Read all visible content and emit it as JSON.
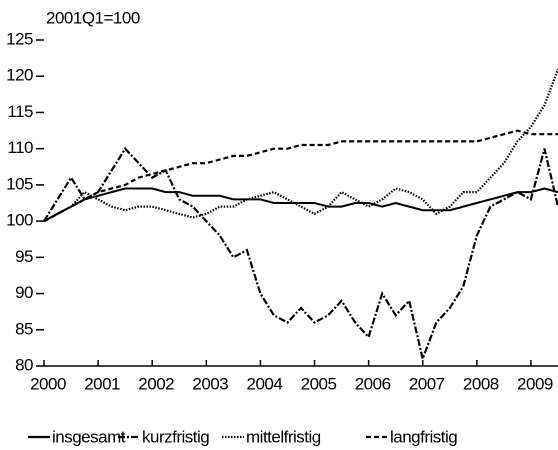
{
  "chart_data": {
    "type": "line",
    "subtitle": "2001Q1=100",
    "x": [
      2000,
      2000.25,
      2000.5,
      2000.75,
      2001,
      2001.25,
      2001.5,
      2001.75,
      2002,
      2002.25,
      2002.5,
      2002.75,
      2003,
      2003.25,
      2003.5,
      2003.75,
      2004,
      2004.25,
      2004.5,
      2004.75,
      2005,
      2005.25,
      2005.5,
      2005.75,
      2006,
      2006.25,
      2006.5,
      2006.75,
      2007,
      2007.25,
      2007.5,
      2007.75,
      2008,
      2008.25,
      2008.5,
      2008.75,
      2009,
      2009.25,
      2009.5
    ],
    "series": [
      {
        "name": "insgesamt",
        "color": "#000000",
        "style": "solid",
        "values": [
          100,
          101,
          102,
          103,
          103.5,
          104,
          104.5,
          104.5,
          104.5,
          104,
          104,
          103.5,
          103.5,
          103.5,
          103,
          103,
          103,
          102.5,
          102.5,
          102.5,
          102.5,
          102,
          102,
          102.5,
          102.5,
          102,
          102.5,
          102,
          101.5,
          101.5,
          101.5,
          102,
          102.5,
          103,
          103.5,
          104,
          104,
          104.5,
          104
        ]
      },
      {
        "name": "kurzfristig",
        "color": "#000000",
        "style": "dashdot",
        "values": [
          100,
          103,
          106,
          103,
          104,
          107,
          110,
          108,
          106,
          107,
          103,
          102,
          100,
          98,
          95,
          96,
          90,
          87,
          86,
          88,
          86,
          87,
          89,
          86,
          84,
          90,
          87,
          89,
          81,
          86,
          88,
          91,
          98,
          102,
          103,
          104,
          103,
          110,
          102
        ]
      },
      {
        "name": "mittelfristig",
        "color": "#000000",
        "style": "dotted",
        "values": [
          100,
          101,
          102,
          104,
          103,
          102,
          101.5,
          102,
          102,
          101.5,
          101,
          100.5,
          101,
          102,
          102,
          103,
          103.5,
          104,
          103,
          102,
          101,
          102,
          104,
          103,
          102,
          103,
          104.5,
          104,
          103,
          101,
          102,
          104,
          104,
          106,
          108,
          111,
          113,
          116,
          121
        ]
      },
      {
        "name": "langfristig",
        "color": "#000000",
        "style": "dashed",
        "values": [
          100,
          101,
          102,
          103,
          104,
          104.5,
          105,
          106,
          106.5,
          107,
          107.5,
          108,
          108,
          108.5,
          109,
          109,
          109.5,
          110,
          110,
          110.5,
          110.5,
          110.5,
          111,
          111,
          111,
          111,
          111,
          111,
          111,
          111,
          111,
          111,
          111,
          111.5,
          112,
          112.5,
          112,
          112,
          112
        ]
      }
    ],
    "xlim": [
      2000,
      2009.5
    ],
    "xticks": [
      2000,
      2001,
      2002,
      2003,
      2004,
      2005,
      2006,
      2007,
      2008,
      2009
    ],
    "ylim": [
      80,
      125
    ],
    "yticks": [
      80,
      85,
      90,
      95,
      100,
      105,
      110,
      115,
      120,
      125
    ]
  }
}
